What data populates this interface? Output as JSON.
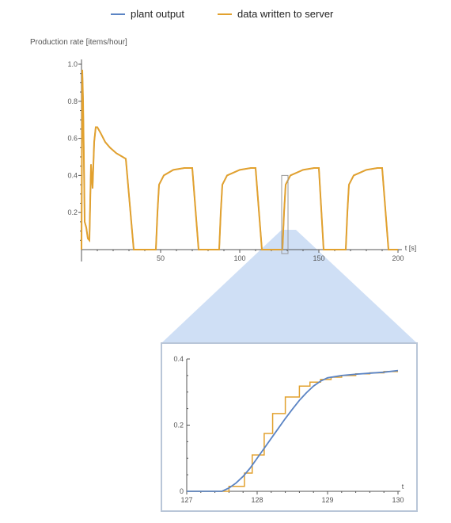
{
  "colors": {
    "plant": "#5b84c4",
    "data": "#e2a12e",
    "axis": "#555555",
    "cone": "#c7d9f3",
    "frame": "#b9c6d8"
  },
  "chart_data": [
    {
      "type": "line",
      "ylabel": "Production rate [items/hour]",
      "xlabel": "t [s]",
      "xlim": [
        0,
        200
      ],
      "ylim": [
        0,
        1.0
      ],
      "xticks": [
        50,
        100,
        150,
        200
      ],
      "yticks": [
        0.2,
        0.4,
        0.6,
        0.8,
        1.0
      ],
      "ytick_labels": [
        "0.2",
        "0.4",
        "0.6",
        "0.8",
        "1.0"
      ],
      "legend": {
        "placement": "top",
        "entries": [
          "plant output",
          "data written to server"
        ]
      },
      "series": [
        {
          "name": "plant output",
          "x": [
            0,
            0.5,
            1,
            1.5,
            2,
            3,
            4,
            5,
            6,
            7,
            8,
            9,
            10,
            12,
            15,
            18,
            22,
            26,
            28,
            33,
            47,
            48,
            49,
            52,
            58,
            65,
            70,
            74,
            87,
            88,
            89,
            92,
            100,
            107,
            110,
            114,
            127,
            128,
            129,
            132,
            140,
            147,
            150,
            153,
            167,
            168,
            169,
            172,
            180,
            187,
            190,
            194,
            200
          ],
          "y": [
            0.0,
            0.97,
            0.8,
            0.5,
            0.15,
            0.12,
            0.06,
            0.05,
            0.46,
            0.33,
            0.58,
            0.66,
            0.66,
            0.63,
            0.58,
            0.55,
            0.52,
            0.5,
            0.49,
            0.0,
            0.0,
            0.2,
            0.35,
            0.4,
            0.43,
            0.44,
            0.44,
            0.0,
            0.0,
            0.2,
            0.35,
            0.4,
            0.43,
            0.44,
            0.44,
            0.0,
            0.0,
            0.2,
            0.35,
            0.4,
            0.43,
            0.44,
            0.44,
            0.0,
            0.0,
            0.2,
            0.35,
            0.4,
            0.43,
            0.44,
            0.44,
            0.0,
            0.0
          ]
        },
        {
          "name": "data written to server",
          "x": [
            0,
            0.5,
            1,
            1.5,
            2,
            3,
            4,
            5,
            6,
            7,
            8,
            9,
            10,
            12,
            15,
            18,
            22,
            26,
            28,
            33,
            47,
            48,
            49,
            52,
            58,
            65,
            70,
            74,
            87,
            88,
            89,
            92,
            100,
            107,
            110,
            114,
            127,
            128,
            129,
            132,
            140,
            147,
            150,
            153,
            167,
            168,
            169,
            172,
            180,
            187,
            190,
            194,
            200
          ],
          "y": [
            0.0,
            0.97,
            0.8,
            0.5,
            0.15,
            0.12,
            0.06,
            0.05,
            0.46,
            0.33,
            0.58,
            0.66,
            0.66,
            0.63,
            0.58,
            0.55,
            0.52,
            0.5,
            0.49,
            0.0,
            0.0,
            0.2,
            0.35,
            0.4,
            0.43,
            0.44,
            0.44,
            0.0,
            0.0,
            0.2,
            0.35,
            0.4,
            0.43,
            0.44,
            0.44,
            0.0,
            0.0,
            0.2,
            0.35,
            0.4,
            0.43,
            0.44,
            0.44,
            0.0,
            0.0,
            0.2,
            0.35,
            0.4,
            0.43,
            0.44,
            0.44,
            0.0,
            0.0
          ]
        }
      ],
      "zoom_window": {
        "x": [
          126.5,
          130.5
        ],
        "y": [
          0,
          0.4
        ]
      }
    },
    {
      "type": "line",
      "xlabel": "t",
      "xlim": [
        127,
        130
      ],
      "ylim": [
        0,
        0.4
      ],
      "xticks": [
        127,
        128,
        129,
        130
      ],
      "yticks": [
        0,
        0.2,
        0.4
      ],
      "ytick_labels": [
        "0",
        "0.2",
        "0.4"
      ],
      "series": [
        {
          "name": "plant output",
          "x": [
            127,
            127.5,
            127.6,
            127.7,
            127.8,
            127.9,
            128.0,
            128.1,
            128.2,
            128.3,
            128.4,
            128.5,
            128.6,
            128.7,
            128.8,
            128.9,
            129.0,
            129.2,
            129.4,
            129.6,
            129.8,
            130.0
          ],
          "y": [
            0.0,
            0.0,
            0.01,
            0.025,
            0.045,
            0.07,
            0.1,
            0.13,
            0.16,
            0.19,
            0.22,
            0.248,
            0.275,
            0.298,
            0.318,
            0.333,
            0.343,
            0.35,
            0.354,
            0.357,
            0.36,
            0.365
          ]
        },
        {
          "name": "data written to server",
          "x": [
            127,
            127.5,
            127.6,
            127.6,
            127.82,
            127.82,
            127.93,
            127.93,
            128.1,
            128.1,
            128.22,
            128.22,
            128.4,
            128.4,
            128.6,
            128.6,
            128.75,
            128.75,
            128.9,
            128.9,
            129.05,
            129.05,
            129.2,
            129.2,
            129.4,
            129.4,
            129.6,
            129.6,
            129.8,
            129.8,
            130.0
          ],
          "y": [
            0.0,
            0.0,
            0.0,
            0.015,
            0.015,
            0.055,
            0.055,
            0.11,
            0.11,
            0.175,
            0.175,
            0.235,
            0.235,
            0.285,
            0.285,
            0.318,
            0.318,
            0.33,
            0.33,
            0.338,
            0.338,
            0.345,
            0.345,
            0.35,
            0.35,
            0.355,
            0.355,
            0.358,
            0.358,
            0.362,
            0.362
          ]
        }
      ]
    }
  ]
}
